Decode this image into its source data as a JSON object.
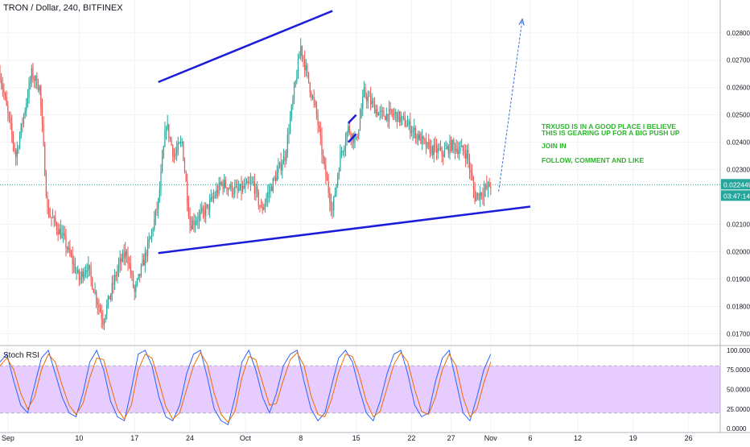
{
  "header": {
    "symbol_title": "TRON / Dollar, 240, BITFINEX"
  },
  "indicator": {
    "name": "Stoch RSI"
  },
  "colors": {
    "up": "#26a69a",
    "down": "#ef5350",
    "trendline": "#1c1cdb",
    "projection": "#3a6fd8",
    "price_line": "#26a69a",
    "price_tag": "#26a69a",
    "annotation": "#2bb52b",
    "rsi_band": "#e6ccff",
    "k_line": "#2962ff",
    "d_line": "#ef6c00",
    "grid": "#f0f3fa",
    "axis_text": "#131722"
  },
  "annotation": {
    "lines": [
      "TRXUSD IS IN A GOOD PLACE I BELIEVE",
      "THIS IS GEARING UP FOR A BIG PUSH UP",
      "JOIN IN",
      "FOLLOW, COMMENT AND LIKE"
    ]
  },
  "price_axis": {
    "ticks": [
      "0.028000",
      "0.027000",
      "0.026000",
      "0.025000",
      "0.024000",
      "0.023000",
      "0.021000",
      "0.020000",
      "0.019000",
      "0.018000",
      "0.017000"
    ],
    "current_price": "0.022449",
    "countdown": "03:47:14"
  },
  "rsi_axis": {
    "ticks": [
      "100.0000",
      "75.0000",
      "50.0000",
      "25.0000",
      "0.0000"
    ]
  },
  "time_axis": {
    "labels": [
      "Sep",
      "10",
      "17",
      "24",
      "Oct",
      "8",
      "15",
      "22",
      "27",
      "Nov",
      "6",
      "12",
      "19",
      "26"
    ]
  },
  "chart_data": [
    {
      "type": "candlestick",
      "title": "TRON / Dollar, 240, BITFINEX",
      "x_range": [
        "2018-08-31",
        "2018-11-30"
      ],
      "ylim": [
        0.0166,
        0.0292
      ],
      "current_price": 0.022449,
      "anchors": [
        {
          "x": "2018-08-31",
          "y": 0.0265
        },
        {
          "x": "2018-09-02",
          "y": 0.0235
        },
        {
          "x": "2018-09-04",
          "y": 0.0265
        },
        {
          "x": "2018-09-05",
          "y": 0.026
        },
        {
          "x": "2018-09-06",
          "y": 0.0215
        },
        {
          "x": "2018-09-08",
          "y": 0.0205
        },
        {
          "x": "2018-09-10",
          "y": 0.019
        },
        {
          "x": "2018-09-11",
          "y": 0.0195
        },
        {
          "x": "2018-09-13",
          "y": 0.0175
        },
        {
          "x": "2018-09-15",
          "y": 0.0195
        },
        {
          "x": "2018-09-16",
          "y": 0.02
        },
        {
          "x": "2018-09-17",
          "y": 0.0185
        },
        {
          "x": "2018-09-19",
          "y": 0.0205
        },
        {
          "x": "2018-09-20",
          "y": 0.0218
        },
        {
          "x": "2018-09-21",
          "y": 0.0247
        },
        {
          "x": "2018-09-22",
          "y": 0.0235
        },
        {
          "x": "2018-09-23",
          "y": 0.024
        },
        {
          "x": "2018-09-24",
          "y": 0.021
        },
        {
          "x": "2018-09-26",
          "y": 0.0215
        },
        {
          "x": "2018-09-28",
          "y": 0.0225
        },
        {
          "x": "2018-09-30",
          "y": 0.0222
        },
        {
          "x": "2018-10-02",
          "y": 0.0225
        },
        {
          "x": "2018-10-03",
          "y": 0.0215
        },
        {
          "x": "2018-10-04",
          "y": 0.0222
        },
        {
          "x": "2018-10-06",
          "y": 0.0235
        },
        {
          "x": "2018-10-07",
          "y": 0.0255
        },
        {
          "x": "2018-10-08",
          "y": 0.0275
        },
        {
          "x": "2018-10-09",
          "y": 0.0262
        },
        {
          "x": "2018-10-10",
          "y": 0.025
        },
        {
          "x": "2018-10-11",
          "y": 0.023
        },
        {
          "x": "2018-10-12",
          "y": 0.0215
        },
        {
          "x": "2018-10-13",
          "y": 0.0235
        },
        {
          "x": "2018-10-14",
          "y": 0.0245
        },
        {
          "x": "2018-10-15",
          "y": 0.024
        },
        {
          "x": "2018-10-16",
          "y": 0.0258
        },
        {
          "x": "2018-10-18",
          "y": 0.025
        },
        {
          "x": "2018-10-20",
          "y": 0.025
        },
        {
          "x": "2018-10-22",
          "y": 0.0245
        },
        {
          "x": "2018-10-24",
          "y": 0.0238
        },
        {
          "x": "2018-10-26",
          "y": 0.0236
        },
        {
          "x": "2018-10-27",
          "y": 0.0239
        },
        {
          "x": "2018-10-29",
          "y": 0.0236
        },
        {
          "x": "2018-10-30",
          "y": 0.022
        },
        {
          "x": "2018-10-31",
          "y": 0.0222
        },
        {
          "x": "2018-11-01",
          "y": 0.02245
        }
      ],
      "trendlines": [
        {
          "name": "upper",
          "from": {
            "x": "2018-09-20",
            "y": 0.0262
          },
          "to": {
            "x": "2018-10-12",
            "y": 0.0288
          }
        },
        {
          "name": "lower",
          "from": {
            "x": "2018-09-20",
            "y": 0.01995
          },
          "to": {
            "x": "2018-11-06",
            "y": 0.02165
          }
        },
        {
          "name": "short-1",
          "from": {
            "x": "2018-10-14",
            "y": 0.0247
          },
          "to": {
            "x": "2018-10-15",
            "y": 0.025
          }
        },
        {
          "name": "short-2",
          "from": {
            "x": "2018-10-14",
            "y": 0.024
          },
          "to": {
            "x": "2018-10-15",
            "y": 0.0243
          }
        }
      ],
      "projection_arrow": {
        "from": {
          "x": "2018-11-02",
          "y": 0.0222
        },
        "to": {
          "x": "2018-11-05",
          "y": 0.0285
        }
      }
    },
    {
      "type": "line",
      "title": "Stoch RSI",
      "ylim": [
        -5,
        105
      ],
      "levels": [
        80,
        20
      ],
      "series": [
        {
          "name": "K",
          "values": [
            85,
            95,
            60,
            30,
            20,
            55,
            90,
            100,
            70,
            40,
            20,
            15,
            45,
            85,
            100,
            75,
            35,
            15,
            10,
            50,
            95,
            100,
            80,
            40,
            15,
            10,
            30,
            70,
            95,
            100,
            65,
            25,
            10,
            5,
            40,
            85,
            100,
            75,
            40,
            20,
            45,
            80,
            95,
            100,
            60,
            25,
            10,
            20,
            55,
            90,
            100,
            85,
            50,
            20,
            10,
            35,
            70,
            95,
            100,
            70,
            30,
            15,
            20,
            60,
            90,
            100,
            60,
            20,
            10,
            40,
            75,
            95
          ]
        },
        {
          "name": "D",
          "values": [
            80,
            90,
            75,
            45,
            25,
            40,
            75,
            95,
            85,
            55,
            30,
            18,
            32,
            65,
            90,
            88,
            55,
            25,
            12,
            30,
            75,
            95,
            90,
            60,
            28,
            12,
            20,
            50,
            80,
            97,
            82,
            45,
            18,
            8,
            22,
            65,
            92,
            88,
            58,
            30,
            32,
            62,
            88,
            97,
            80,
            42,
            18,
            15,
            38,
            72,
            95,
            92,
            68,
            35,
            15,
            22,
            52,
            82,
            97,
            85,
            50,
            22,
            18,
            40,
            75,
            95,
            80,
            40,
            15,
            25,
            58,
            85
          ]
        }
      ]
    }
  ]
}
